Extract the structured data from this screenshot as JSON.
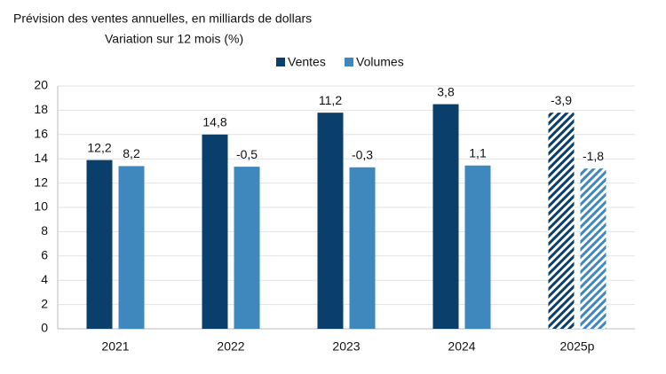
{
  "chart_data": {
    "type": "bar",
    "title": "Prévision des ventes annuelles, en milliards de dollars",
    "subtitle": "Variation sur 12 mois (%)",
    "categories": [
      "2021",
      "2022",
      "2023",
      "2024",
      "2025p"
    ],
    "series": [
      {
        "name": "Ventes",
        "color": "#0b3f6b",
        "values": [
          13.9,
          16.0,
          17.8,
          18.5,
          17.8
        ],
        "change_labels": [
          "12,2",
          "14,8",
          "11,2",
          "3,8",
          "-3,9"
        ]
      },
      {
        "name": "Volumes",
        "color": "#3f88be",
        "values": [
          13.4,
          13.35,
          13.3,
          13.45,
          13.2
        ],
        "change_labels": [
          "8,2",
          "-0,5",
          "-0,3",
          "1,1",
          "-1,8"
        ]
      }
    ],
    "hatch_from_index": 4,
    "ylim": [
      0,
      20
    ],
    "yticks": [
      0,
      2,
      4,
      6,
      8,
      10,
      12,
      14,
      16,
      18,
      20
    ],
    "grid": true,
    "legend": "top"
  }
}
